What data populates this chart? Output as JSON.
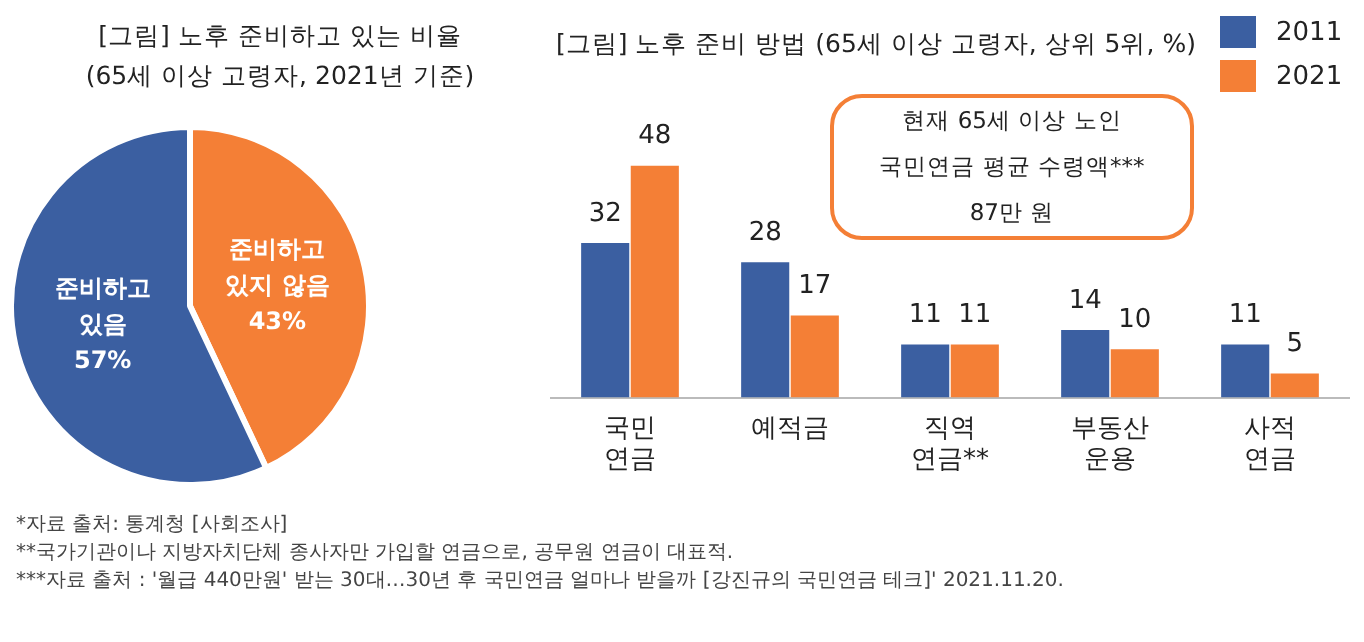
{
  "chart_data": [
    {
      "type": "pie",
      "title": "[그림] 노후 준비하고 있는 비율",
      "subtitle": "(65세 이상 고령자, 2021년 기준)",
      "categories": [
        "준비하고\n있지 않음",
        "준비하고\n있음"
      ],
      "values": [
        43,
        57
      ],
      "colors": [
        "#f47f36",
        "#3b5fa1"
      ],
      "value_labels": [
        "43%",
        "57%"
      ]
    },
    {
      "type": "bar",
      "title": "[그림] 노후 준비 방법 (65세 이상 고령자, 상위 5위, %)",
      "categories": [
        "국민\n연금",
        "예적금",
        "직역\n연금**",
        "부동산\n운용",
        "사적\n연금"
      ],
      "series": [
        {
          "name": "2011",
          "color": "#3b5fa1",
          "values": [
            32,
            28,
            11,
            14,
            11
          ]
        },
        {
          "name": "2021",
          "color": "#f47f36",
          "values": [
            48,
            17,
            11,
            10,
            5
          ]
        }
      ],
      "data_labels": true,
      "legend": "top right",
      "tick_labels": "x",
      "grid": false,
      "annotations": [
        "현재 65세 이상 노인\n국민연금 평균 수령액***\n87만 원",
        "*자료 출처: 통계청 [사회조사]",
        "**국가기관이나 지방자치단체 종사자만 가입할 연금으로, 공무원 연금이 대표적.",
        "***자료 출처 : '월급 440만원' 받는 30대…30년 후 국민연금 얼마나 받을까 [강진규의 국민연금 테크]' 2021.11.20."
      ]
    }
  ]
}
